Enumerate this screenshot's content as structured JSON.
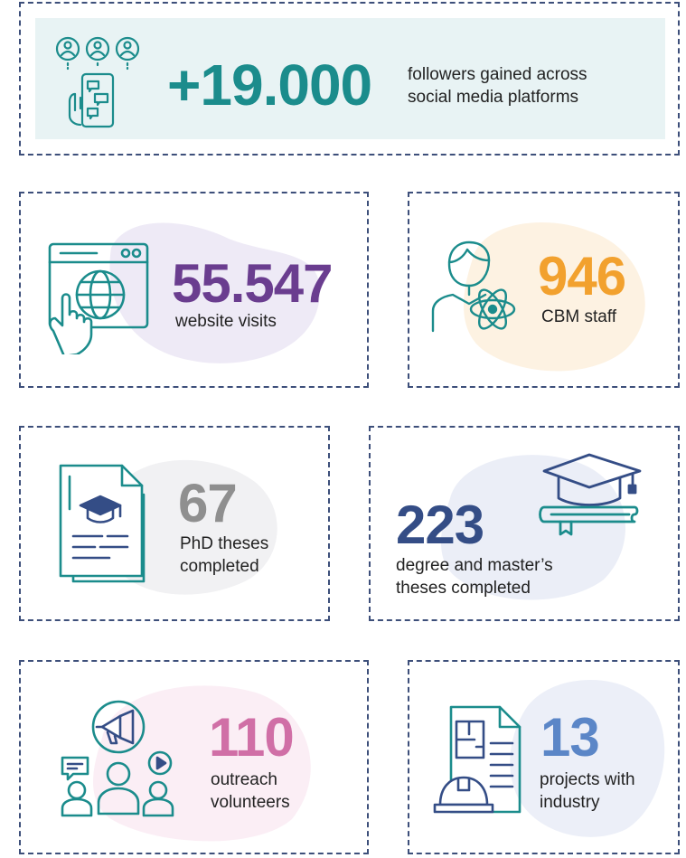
{
  "colors": {
    "teal": "#1b8c8c",
    "purple": "#6a3d8f",
    "orange": "#f2a12e",
    "gray": "#8f8f8f",
    "navy": "#344d86",
    "pink": "#d06fa6",
    "blue": "#5b86c7",
    "border": "#3d4f7a"
  },
  "stats": {
    "followers": {
      "value": "+19.000",
      "label": "followers gained across\nsocial media platforms",
      "icon": "social-media-phone-icon"
    },
    "website": {
      "value": "55.547",
      "label": "website visits",
      "icon": "website-globe-icon"
    },
    "staff": {
      "value": "946",
      "label": "CBM staff",
      "icon": "scientist-atom-icon"
    },
    "phd": {
      "value": "67",
      "label": "PhD theses\ncompleted",
      "icon": "thesis-document-icon"
    },
    "degree": {
      "value": "223",
      "label": "degree and master’s\ntheses completed",
      "icon": "graduation-cap-book-icon"
    },
    "outreach": {
      "value": "110",
      "label": "outreach\nvolunteers",
      "icon": "megaphone-people-icon"
    },
    "industry": {
      "value": "13",
      "label": "projects with\nindustry",
      "icon": "blueprint-helmet-icon"
    }
  }
}
